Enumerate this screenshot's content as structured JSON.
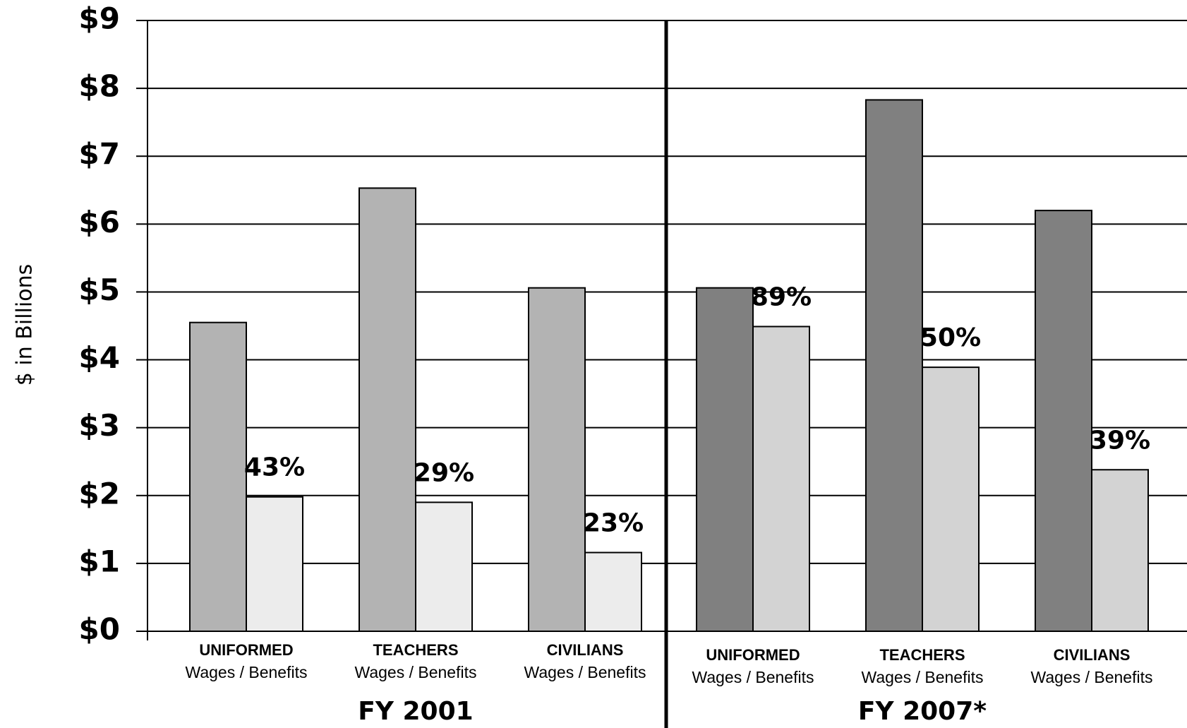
{
  "chart_data": [
    {
      "type": "bar",
      "xlabel": "FY 2001",
      "ylabel": "$ in Billions",
      "categories": [
        "UNIFORMED",
        "TEACHERS",
        "CIVILIANS"
      ],
      "category_sublabels": [
        "Wages / Benefits",
        "Wages / Benefits",
        "Wages / Benefits"
      ],
      "series": [
        {
          "color": "#b3b3b3",
          "values": [
            4.55,
            6.53,
            5.06
          ]
        },
        {
          "color": "#ececec",
          "values": [
            1.98,
            1.9,
            1.16
          ],
          "annotations": [
            "43%",
            "29%",
            "23%"
          ]
        }
      ],
      "ylim": [
        0,
        9
      ],
      "yticks": [
        {
          "value": 0,
          "label": "$0"
        },
        {
          "value": 1,
          "label": "$1"
        },
        {
          "value": 2,
          "label": "$2"
        },
        {
          "value": 3,
          "label": "$3"
        },
        {
          "value": 4,
          "label": "$4"
        },
        {
          "value": 5,
          "label": "$5"
        },
        {
          "value": 6,
          "label": "$6"
        },
        {
          "value": 7,
          "label": "$7"
        },
        {
          "value": 8,
          "label": "$8"
        },
        {
          "value": 9,
          "label": "$9"
        }
      ],
      "grid": true
    },
    {
      "type": "bar",
      "xlabel": "FY 2007*",
      "categories": [
        "UNIFORMED",
        "TEACHERS",
        "CIVILIANS"
      ],
      "category_sublabels": [
        "Wages / Benefits",
        "Wages / Benefits",
        "Wages / Benefits"
      ],
      "series": [
        {
          "color": "#808080",
          "values": [
            5.06,
            7.83,
            6.2
          ]
        },
        {
          "color": "#d3d3d3",
          "values": [
            4.49,
            3.89,
            2.38
          ],
          "annotations": [
            "89%",
            "50%",
            "39%"
          ]
        }
      ],
      "ylim": [
        0,
        9
      ],
      "yticks": [
        0,
        1,
        2,
        3,
        4,
        5,
        6,
        7,
        8,
        9
      ],
      "grid": true
    }
  ]
}
